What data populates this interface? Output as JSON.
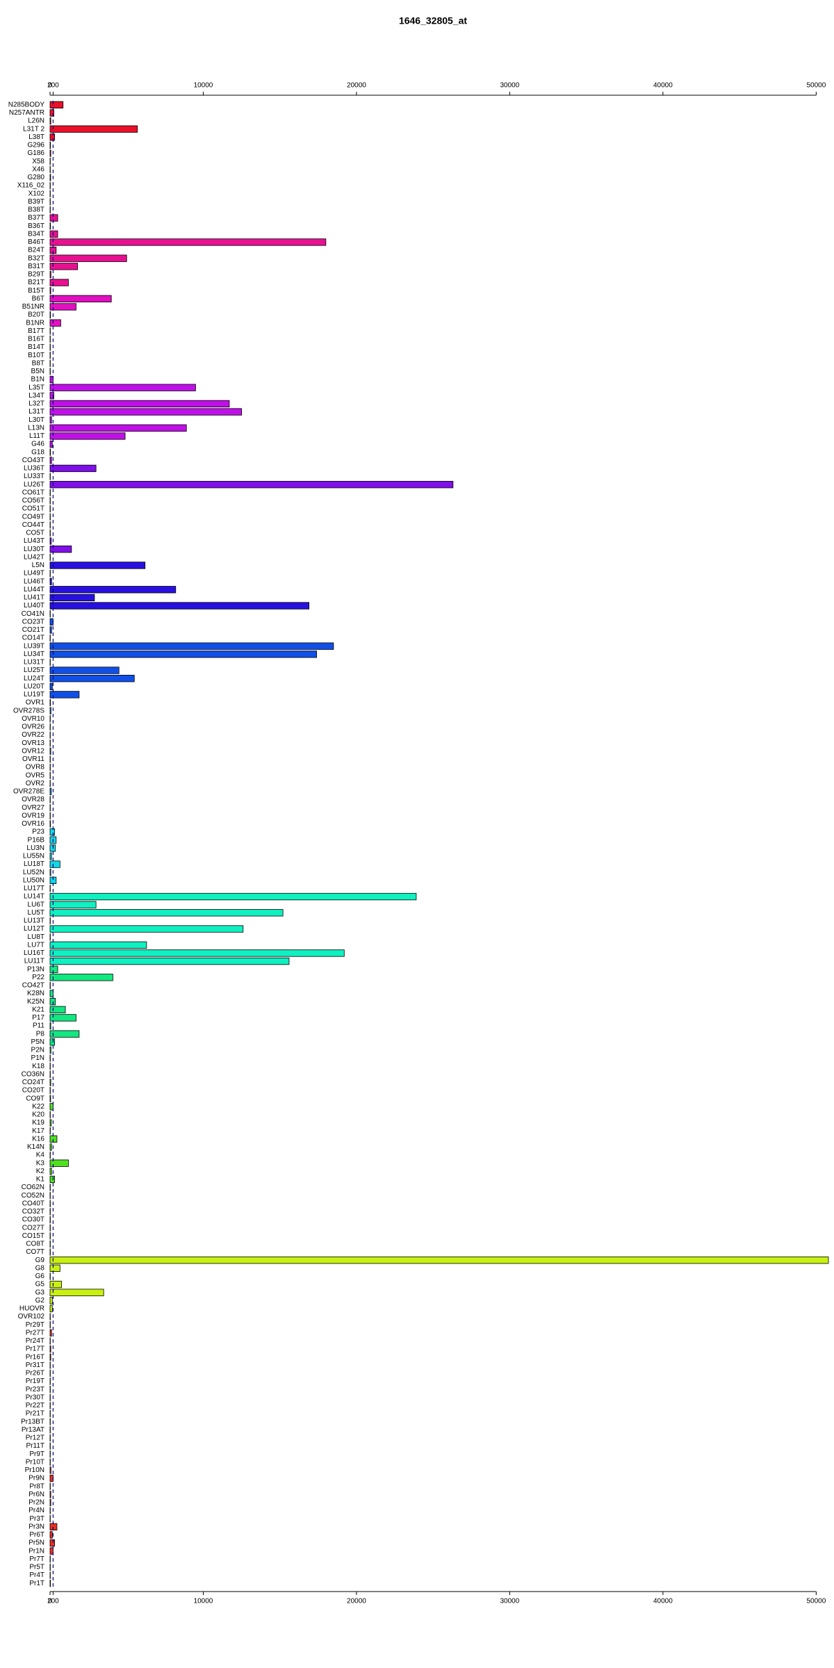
{
  "chart_data": {
    "type": "barh",
    "title": "1646_32805_at",
    "categories": [
      "N285BODY",
      "N257ANTR",
      "L26N",
      "L31T 2",
      "L38T",
      "G296",
      "G186",
      "X58",
      "X46",
      "G280",
      "X116_02",
      "X102",
      "B39T",
      "B38T",
      "B37T",
      "B36T",
      "B34T",
      "B46T",
      "B24T",
      "B32T",
      "B31T",
      "B29T",
      "B21T",
      "B15T",
      "B6T",
      "B51NR",
      "B20T",
      "B1NR",
      "B17T",
      "B16T",
      "B14T",
      "B10T",
      "B8T",
      "B5N",
      "B1N",
      "L35T",
      "L34T",
      "L32T",
      "L31T",
      "L30T",
      "L13N",
      "L11T",
      "G46",
      "G18",
      "CO43T",
      "LU36T",
      "LU33T",
      "LU26T",
      "CO61T",
      "CO56T",
      "CO51T",
      "CO49T",
      "CO44T",
      "CO5T",
      "LU43T",
      "LU30T",
      "LU42T",
      "L5N",
      "LU49T",
      "LU46T",
      "LU44T",
      "LU41T",
      "LU40T",
      "CO41N",
      "CO23T",
      "CO21T",
      "CO14T",
      "LU39T",
      "LU34T",
      "LU31T",
      "LU25T",
      "LU24T",
      "LU20T",
      "LU19T",
      "OVR1",
      "OVR278S",
      "OVR10",
      "OVR26",
      "OVR22",
      "OVR13",
      "OVR12",
      "OVR11",
      "OVR8",
      "OVR5",
      "OVR2",
      "OVR278E",
      "OVR28",
      "OVR27",
      "OVR19",
      "OVR16",
      "P23",
      "P16B",
      "LU3N",
      "LU55N",
      "LU18T",
      "LU52N",
      "LU50N",
      "LU17T",
      "LU14T",
      "LU6T",
      "LU5T",
      "LU13T",
      "LU12T",
      "LU8T",
      "LU7T",
      "LU16T",
      "LU11T",
      "P13N",
      "P22",
      "CO42T",
      "K28N",
      "K25N",
      "K21",
      "P17",
      "P11",
      "P8",
      "P5N",
      "P2N",
      "P1N",
      "K18",
      "CO36N",
      "CO24T",
      "CO20T",
      "CO9T",
      "K22",
      "K20",
      "K19",
      "K17",
      "K16",
      "K14N",
      "K4",
      "K3",
      "K2",
      "K1",
      "CO62N",
      "CO52N",
      "CO40T",
      "CO32T",
      "CO30T",
      "CO27T",
      "CO15T",
      "CO8T",
      "CO7T",
      "G9",
      "G8",
      "G6",
      "G5",
      "G3",
      "G2",
      "HUOVR",
      "OVR102",
      "Pr29T",
      "Pr27T",
      "Pr24T",
      "Pr17T",
      "Pr16T",
      "Pr31T",
      "Pr26T",
      "Pr19T",
      "Pr23T",
      "Pr30T",
      "Pr22T",
      "Pr21T",
      "Pr13BT",
      "Pr13AT",
      "Pr12T",
      "Pr11T",
      "Pr9T",
      "Pr10T",
      "Pr10N",
      "Pr9N",
      "Pr8T",
      "Pr6N",
      "Pr2N",
      "Pr4N",
      "Pr3T",
      "Pr3N",
      "Pr6T",
      "Pr5N",
      "Pr1N",
      "Pr7T",
      "Pr5T",
      "Pr4T",
      "Pr1T"
    ],
    "values": [
      850,
      250,
      50,
      5700,
      300,
      30,
      50,
      20,
      20,
      40,
      20,
      20,
      20,
      20,
      500,
      30,
      500,
      18000,
      400,
      5000,
      1800,
      60,
      1200,
      50,
      4000,
      1700,
      30,
      700,
      20,
      20,
      20,
      20,
      20,
      20,
      200,
      9500,
      250,
      11700,
      12500,
      100,
      8900,
      4900,
      150,
      30,
      100,
      3000,
      20,
      26300,
      20,
      20,
      20,
      20,
      20,
      20,
      80,
      1400,
      20,
      6200,
      20,
      100,
      8200,
      2900,
      16900,
      20,
      200,
      100,
      20,
      18500,
      17400,
      20,
      4500,
      5500,
      150,
      1900,
      30,
      60,
      20,
      20,
      20,
      20,
      50,
      20,
      20,
      20,
      20,
      80,
      20,
      20,
      20,
      30,
      300,
      400,
      350,
      100,
      650,
      50,
      400,
      20,
      23900,
      3000,
      15200,
      20,
      12600,
      20,
      6300,
      19200,
      15600,
      500,
      4100,
      20,
      200,
      350,
      1000,
      1700,
      50,
      1900,
      300,
      60,
      20,
      20,
      20,
      50,
      20,
      40,
      200,
      20,
      80,
      20,
      450,
      100,
      20,
      1200,
      100,
      300,
      20,
      20,
      20,
      20,
      20,
      20,
      20,
      20,
      20,
      50800,
      650,
      20,
      750,
      3500,
      150,
      150,
      20,
      20,
      100,
      20,
      50,
      50,
      20,
      20,
      20,
      20,
      20,
      20,
      20,
      20,
      20,
      20,
      20,
      20,
      20,
      60,
      200,
      20,
      50,
      50,
      20,
      20,
      450,
      150,
      300,
      200,
      20,
      20,
      20,
      30
    ],
    "colors": [
      "#e8102a",
      "#e8102a",
      "#e8102a",
      "#e8102a",
      "#e8102a",
      "#e81050",
      "#e81050",
      "#e81050",
      "#e81050",
      "#e81050",
      "#e81050",
      "#e81050",
      "#e81050",
      "#e81050",
      "#e81090",
      "#e81090",
      "#e81090",
      "#e81090",
      "#e81090",
      "#e81090",
      "#e81090",
      "#e81090",
      "#e81090",
      "#e81090",
      "#e010c0",
      "#e010c0",
      "#e010c0",
      "#e010c0",
      "#e010c0",
      "#e010c0",
      "#e010c0",
      "#e010c0",
      "#e010c0",
      "#e010c0",
      "#c010e8",
      "#c010e8",
      "#c010e8",
      "#c010e8",
      "#c010e8",
      "#c010e8",
      "#c010e8",
      "#c010e8",
      "#c010e8",
      "#c010e8",
      "#c010e8",
      "#8010e8",
      "#8010e8",
      "#8010e8",
      "#8010e8",
      "#8010e8",
      "#8010e8",
      "#8010e8",
      "#8010e8",
      "#8010e8",
      "#8010e8",
      "#8010e8",
      "#8010e8",
      "#2810e0",
      "#2810e0",
      "#2810e0",
      "#2810e0",
      "#2810e0",
      "#2810e0",
      "#2810e0",
      "#1050e8",
      "#1050e8",
      "#1050e8",
      "#1050e8",
      "#1050e8",
      "#1050e8",
      "#1050e8",
      "#1050e8",
      "#1050e8",
      "#1050e8",
      "#10a0e8",
      "#10a0e8",
      "#10a0e8",
      "#10a0e8",
      "#10a0e8",
      "#10a0e8",
      "#10a0e8",
      "#10a0e8",
      "#10a0e8",
      "#10a0e8",
      "#10a0e8",
      "#10a0e8",
      "#10a0e8",
      "#10a0e8",
      "#10a0e8",
      "#10a0e8",
      "#10d8e8",
      "#10d8e8",
      "#10d8e8",
      "#10d8e8",
      "#10d8e8",
      "#10d8e8",
      "#10d8e8",
      "#10d8e8",
      "#10f0c0",
      "#10f0c0",
      "#10f0c0",
      "#10f0c0",
      "#10f0c0",
      "#10f0c0",
      "#10f0c0",
      "#10f0c0",
      "#10f0c0",
      "#10e880",
      "#10e880",
      "#10e880",
      "#10e880",
      "#10e880",
      "#10e880",
      "#10e880",
      "#10e880",
      "#10e880",
      "#10e880",
      "#10e880",
      "#10e880",
      "#10e880",
      "#50e020",
      "#50e020",
      "#50e020",
      "#50e020",
      "#50e020",
      "#50e020",
      "#50e020",
      "#50e020",
      "#50e020",
      "#50e020",
      "#50e020",
      "#50e020",
      "#50e020",
      "#50e020",
      "#c8f010",
      "#c8f010",
      "#c8f010",
      "#c8f010",
      "#c8f010",
      "#c8f010",
      "#c8f010",
      "#c8f010",
      "#c8f010",
      "#c8f010",
      "#c8f010",
      "#c8f010",
      "#c8f010",
      "#c8f010",
      "#c8f010",
      "#c8f010",
      "#e83020",
      "#e83020",
      "#e83020",
      "#e83020",
      "#e83020",
      "#e83020",
      "#e83020",
      "#e83020",
      "#e83020",
      "#e83020",
      "#e83020",
      "#e83020",
      "#e83020",
      "#e83020",
      "#e83020",
      "#e83020",
      "#e83020",
      "#e83020",
      "#e83020",
      "#e83020",
      "#e83020",
      "#e83020",
      "#e83020",
      "#e83020",
      "#e83020",
      "#e83020",
      "#e83020",
      "#e83020",
      "#e83020",
      "#e83020",
      "#e83020",
      "#e83020",
      "#e83020",
      "#e83020"
    ],
    "xlim": [
      0,
      50800
    ],
    "xticks": [
      0,
      200,
      10000,
      20000,
      30000,
      40000,
      50000
    ],
    "ref_line": 200
  }
}
